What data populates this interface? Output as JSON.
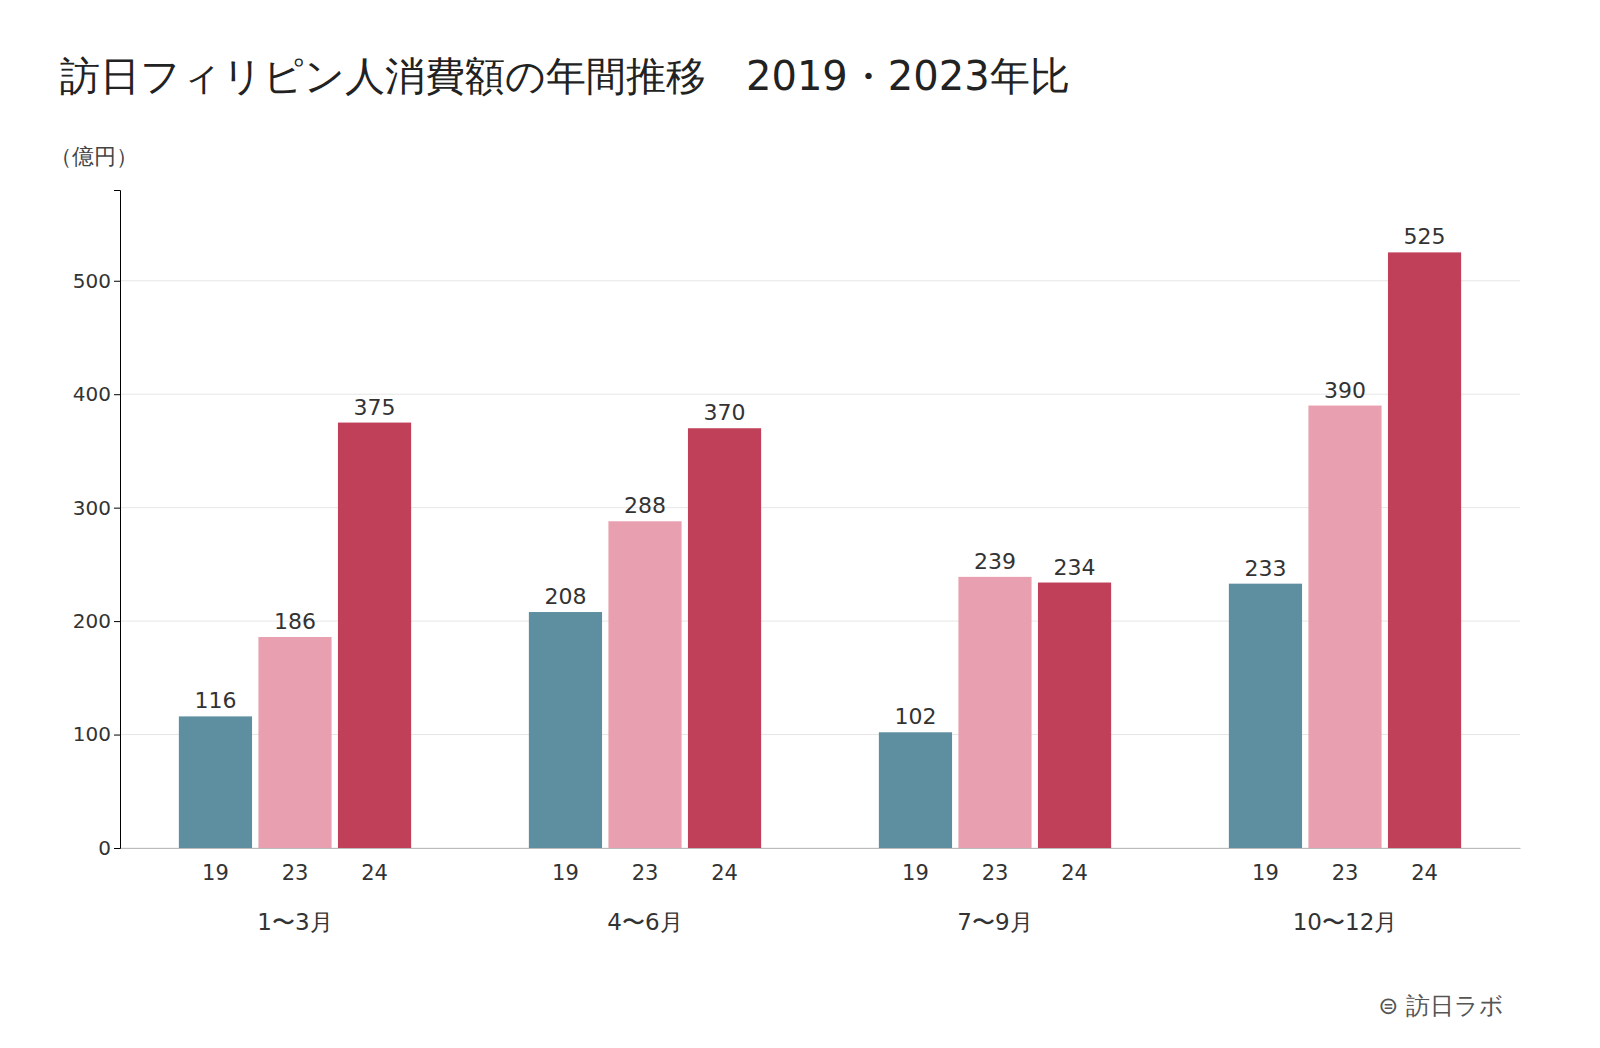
{
  "chart_data": {
    "type": "bar",
    "title": "訪日フィリピン人消費額の年間推移　2019・2023年比",
    "ylabel": "（億円）",
    "categories": [
      "1〜3月",
      "4〜6月",
      "7〜9月",
      "10〜12月"
    ],
    "series": [
      {
        "name": "19",
        "color": "#5e8fa0",
        "values": [
          116,
          208,
          102,
          233
        ]
      },
      {
        "name": "23",
        "color": "#e8a0b0",
        "values": [
          186,
          288,
          239,
          390
        ]
      },
      {
        "name": "24",
        "color": "#c0405a",
        "values": [
          375,
          370,
          234,
          525
        ]
      }
    ],
    "ylim": [
      0,
      580
    ],
    "yticks": [
      0,
      100,
      200,
      300,
      400,
      500
    ],
    "grid": true,
    "data_labels": true,
    "annotations": [
      "⊜ 訪日ラボ"
    ]
  }
}
